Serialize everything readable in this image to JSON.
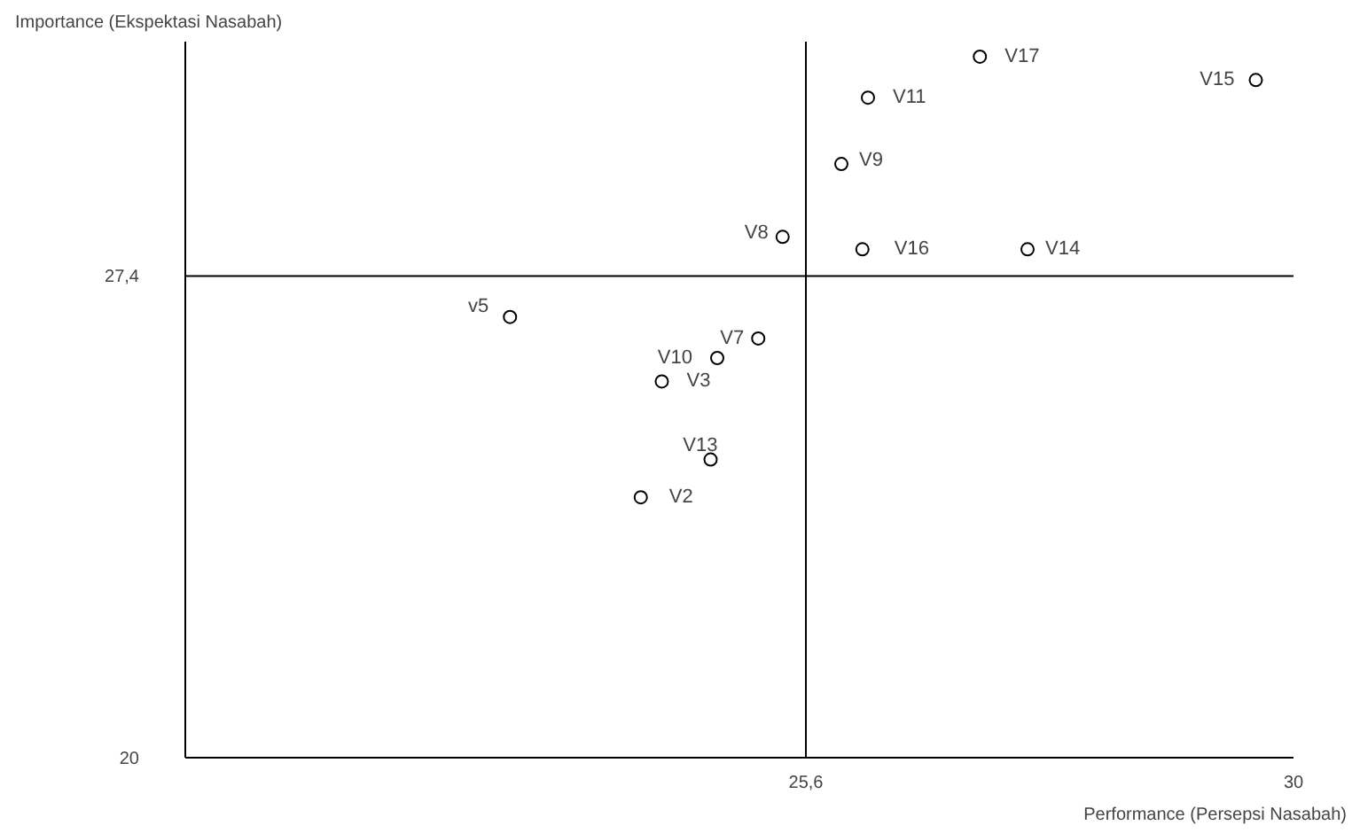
{
  "chart_data": {
    "type": "scatter",
    "xlabel": "Performance (Persepsi Nasabah)",
    "ylabel": "Importance (Ekspektasi Nasabah)",
    "xlim": [
      20,
      30
    ],
    "ylim": [
      20,
      31
    ],
    "xticks": [
      {
        "value": 25.6,
        "label": "25,6"
      },
      30
    ],
    "yticks": [
      20,
      {
        "value": 27.4,
        "label": "27,4"
      }
    ],
    "marker": "circle",
    "grid": false,
    "x": [
      27.17,
      26.16,
      29.66,
      25.92,
      25.39,
      26.11,
      27.6,
      22.93,
      25.17,
      24.8,
      24.3,
      24.74,
      24.11
    ],
    "series": [
      {
        "color": "#000000",
        "values": [
          30.77,
          30.14,
          30.41,
          29.12,
          28.0,
          27.81,
          27.81,
          26.77,
          26.44,
          26.14,
          25.78,
          24.58,
          24.0
        ]
      }
    ],
    "ref_lines": [
      {
        "axis": "x",
        "value": 25.6,
        "color": "#000000"
      },
      {
        "axis": "y",
        "value": 27.4,
        "color": "#000000"
      }
    ],
    "annotations": [
      {
        "text": "V17",
        "x": 27.17,
        "y": 30.77
      },
      {
        "text": "V11",
        "x": 26.16,
        "y": 30.14
      },
      {
        "text": "V15",
        "x": 29.66,
        "y": 30.41
      },
      {
        "text": "V9",
        "x": 25.92,
        "y": 29.12
      },
      {
        "text": "V8",
        "x": 25.39,
        "y": 28.0
      },
      {
        "text": "V16",
        "x": 26.11,
        "y": 27.81
      },
      {
        "text": "V14",
        "x": 27.6,
        "y": 27.81
      },
      {
        "text": "v5",
        "x": 22.93,
        "y": 26.77
      },
      {
        "text": "V7",
        "x": 25.17,
        "y": 26.44
      },
      {
        "text": "V10",
        "x": 24.8,
        "y": 26.14
      },
      {
        "text": "V3",
        "x": 24.3,
        "y": 25.78
      },
      {
        "text": "V13",
        "x": 24.74,
        "y": 24.58
      },
      {
        "text": "V2",
        "x": 24.11,
        "y": 24.0
      }
    ]
  }
}
